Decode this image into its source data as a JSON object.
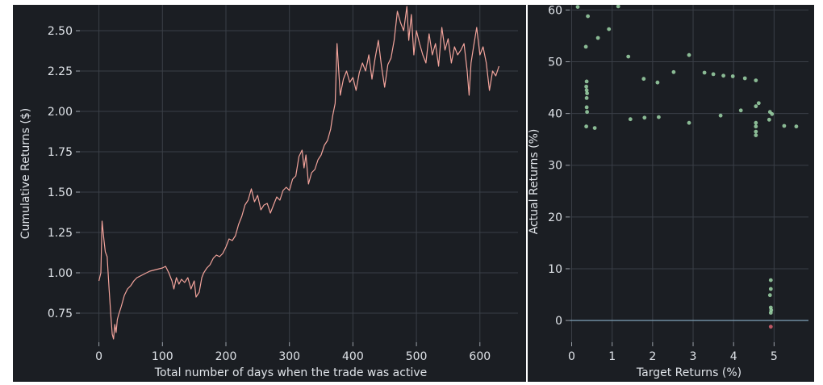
{
  "chart_data": [
    {
      "type": "line",
      "xlabel": "Total number of days when the trade was active",
      "ylabel": "Cumulative Returns ($)",
      "xlim": [
        -30,
        660
      ],
      "ylim": [
        0.57,
        2.66
      ],
      "xticks": [
        "0",
        "100",
        "200",
        "300",
        "400",
        "500",
        "600"
      ],
      "yticks": [
        "0.75",
        "1.00",
        "1.25",
        "1.50",
        "1.75",
        "2.00",
        "2.25",
        "2.50"
      ],
      "grid": true,
      "color": "#f2a39b",
      "series": [
        {
          "x": [
            0,
            3,
            5,
            8,
            10,
            13,
            16,
            19,
            21,
            23,
            25,
            27,
            29,
            31,
            35,
            40,
            45,
            50,
            55,
            60,
            65,
            70,
            75,
            80,
            90,
            100,
            105,
            110,
            115,
            118,
            122,
            126,
            130,
            135,
            140,
            145,
            150,
            153,
            158,
            162,
            165,
            170,
            175,
            180,
            185,
            190,
            195,
            200,
            205,
            210,
            215,
            220,
            225,
            230,
            235,
            240,
            245,
            250,
            255,
            260,
            265,
            270,
            275,
            280,
            285,
            290,
            295,
            300,
            305,
            310,
            315,
            320,
            323,
            326,
            330,
            335,
            340,
            345,
            350,
            355,
            360,
            365,
            368,
            372,
            375,
            380,
            385,
            390,
            395,
            400,
            405,
            410,
            415,
            420,
            425,
            430,
            435,
            440,
            445,
            450,
            455,
            460,
            465,
            470,
            475,
            480,
            485,
            488,
            492,
            496,
            500,
            505,
            510,
            515,
            520,
            525,
            530,
            535,
            540,
            545,
            550,
            555,
            560,
            565,
            570,
            575,
            580,
            583,
            586,
            590,
            595,
            600,
            605,
            610,
            615,
            620,
            625,
            630
          ],
          "y": [
            0.95,
            1.0,
            1.32,
            1.2,
            1.13,
            1.1,
            0.9,
            0.72,
            0.62,
            0.59,
            0.68,
            0.63,
            0.71,
            0.74,
            0.79,
            0.86,
            0.9,
            0.92,
            0.95,
            0.97,
            0.98,
            0.99,
            1.0,
            1.01,
            1.02,
            1.03,
            1.04,
            1.0,
            0.95,
            0.9,
            0.97,
            0.93,
            0.96,
            0.94,
            0.97,
            0.9,
            0.95,
            0.85,
            0.88,
            0.97,
            1.0,
            1.03,
            1.05,
            1.09,
            1.11,
            1.1,
            1.12,
            1.16,
            1.21,
            1.2,
            1.23,
            1.3,
            1.35,
            1.42,
            1.45,
            1.52,
            1.44,
            1.48,
            1.39,
            1.42,
            1.43,
            1.37,
            1.42,
            1.47,
            1.45,
            1.51,
            1.53,
            1.51,
            1.58,
            1.6,
            1.72,
            1.76,
            1.65,
            1.73,
            1.55,
            1.62,
            1.64,
            1.7,
            1.73,
            1.79,
            1.82,
            1.89,
            1.97,
            2.05,
            2.42,
            2.1,
            2.2,
            2.25,
            2.18,
            2.21,
            2.13,
            2.24,
            2.3,
            2.25,
            2.35,
            2.2,
            2.33,
            2.44,
            2.28,
            2.15,
            2.29,
            2.33,
            2.44,
            2.62,
            2.55,
            2.5,
            2.65,
            2.44,
            2.6,
            2.35,
            2.5,
            2.42,
            2.35,
            2.3,
            2.48,
            2.35,
            2.42,
            2.28,
            2.52,
            2.38,
            2.45,
            2.3,
            2.4,
            2.35,
            2.38,
            2.42,
            2.25,
            2.1,
            2.3,
            2.4,
            2.52,
            2.35,
            2.4,
            2.3,
            2.13,
            2.25,
            2.22,
            2.28
          ]
        }
      ]
    },
    {
      "type": "scatter",
      "xlabel": "Target Returns (%)",
      "ylabel": "Actual Returns (%)",
      "xlim": [
        -0.05,
        5.85
      ],
      "ylim": [
        -4.2,
        61.0
      ],
      "xticks": [
        "0",
        "1",
        "2",
        "3",
        "4",
        "5"
      ],
      "yticks": [
        "0",
        "10",
        "20",
        "30",
        "40",
        "50",
        "60"
      ],
      "grid": true,
      "hline": 0,
      "colors": {
        "positive": "#9ed6a8",
        "negative": "#d9606f",
        "zero_line": "#8ab4cc"
      },
      "points": [
        {
          "x": 0.15,
          "y": 60.6
        },
        {
          "x": 0.4,
          "y": 58.8
        },
        {
          "x": 0.35,
          "y": 52.9
        },
        {
          "x": 0.65,
          "y": 54.6
        },
        {
          "x": 0.92,
          "y": 56.3
        },
        {
          "x": 1.15,
          "y": 60.7
        },
        {
          "x": 0.37,
          "y": 46.2
        },
        {
          "x": 0.36,
          "y": 45.2
        },
        {
          "x": 0.37,
          "y": 44.5
        },
        {
          "x": 0.38,
          "y": 43.9
        },
        {
          "x": 0.37,
          "y": 43.0
        },
        {
          "x": 0.37,
          "y": 41.2
        },
        {
          "x": 0.38,
          "y": 40.3
        },
        {
          "x": 0.36,
          "y": 37.5
        },
        {
          "x": 0.57,
          "y": 37.2
        },
        {
          "x": 1.4,
          "y": 51.0
        },
        {
          "x": 1.45,
          "y": 38.9
        },
        {
          "x": 1.78,
          "y": 46.7
        },
        {
          "x": 1.8,
          "y": 39.2
        },
        {
          "x": 2.12,
          "y": 46.0
        },
        {
          "x": 2.15,
          "y": 39.3
        },
        {
          "x": 2.52,
          "y": 48.0
        },
        {
          "x": 2.9,
          "y": 51.3
        },
        {
          "x": 2.9,
          "y": 38.2
        },
        {
          "x": 3.28,
          "y": 47.9
        },
        {
          "x": 3.5,
          "y": 47.6
        },
        {
          "x": 3.68,
          "y": 39.6
        },
        {
          "x": 3.75,
          "y": 47.3
        },
        {
          "x": 3.98,
          "y": 47.2
        },
        {
          "x": 4.18,
          "y": 40.6
        },
        {
          "x": 4.28,
          "y": 46.8
        },
        {
          "x": 4.55,
          "y": 46.4
        },
        {
          "x": 4.55,
          "y": 41.4
        },
        {
          "x": 4.62,
          "y": 42.0
        },
        {
          "x": 4.55,
          "y": 38.2
        },
        {
          "x": 4.55,
          "y": 37.5
        },
        {
          "x": 4.55,
          "y": 36.5
        },
        {
          "x": 4.55,
          "y": 35.8
        },
        {
          "x": 4.9,
          "y": 40.3
        },
        {
          "x": 4.95,
          "y": 39.9
        },
        {
          "x": 4.88,
          "y": 38.8
        },
        {
          "x": 5.25,
          "y": 37.6
        },
        {
          "x": 5.55,
          "y": 37.5
        },
        {
          "x": 4.92,
          "y": 7.8
        },
        {
          "x": 4.92,
          "y": 6.1
        },
        {
          "x": 4.9,
          "y": 4.9
        },
        {
          "x": 4.92,
          "y": 2.5
        },
        {
          "x": 4.93,
          "y": 2.0
        },
        {
          "x": 4.92,
          "y": 1.5
        },
        {
          "x": 4.92,
          "y": -1.2
        }
      ]
    }
  ]
}
